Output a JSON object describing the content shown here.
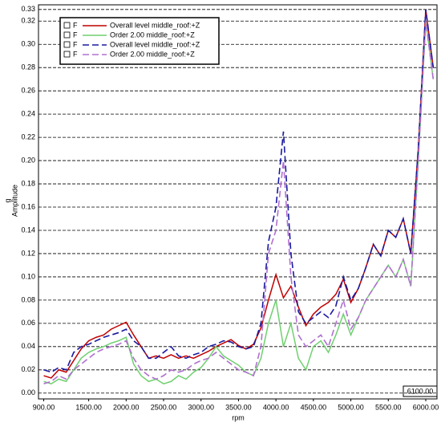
{
  "chart_data": {
    "type": "line",
    "x_label": "rpm",
    "y_label_unit": "g",
    "y_label": "Amplitude",
    "cursor_label": "6100.00",
    "x": [
      900,
      1000,
      1100,
      1200,
      1300,
      1400,
      1500,
      1600,
      1700,
      1800,
      1900,
      2000,
      2100,
      2200,
      2300,
      2400,
      2500,
      2600,
      2700,
      2800,
      2900,
      3000,
      3100,
      3200,
      3300,
      3400,
      3500,
      3600,
      3700,
      3800,
      3900,
      4000,
      4100,
      4200,
      4300,
      4400,
      4500,
      4600,
      4700,
      4800,
      4900,
      5000,
      5100,
      5200,
      5300,
      5400,
      5500,
      5600,
      5700,
      5800,
      5900,
      6000,
      6100
    ],
    "series": [
      {
        "name": "Overall level middle_roof:+Z",
        "flag": "F",
        "color": "#c00000",
        "dash": false,
        "values": [
          0.015,
          0.013,
          0.02,
          0.018,
          0.028,
          0.038,
          0.045,
          0.048,
          0.05,
          0.055,
          0.058,
          0.061,
          0.05,
          0.04,
          0.03,
          0.032,
          0.03,
          0.033,
          0.03,
          0.032,
          0.03,
          0.033,
          0.036,
          0.04,
          0.043,
          0.046,
          0.041,
          0.038,
          0.042,
          0.056,
          0.08,
          0.102,
          0.082,
          0.092,
          0.074,
          0.058,
          0.068,
          0.074,
          0.078,
          0.085,
          0.098,
          0.078,
          0.09,
          0.108,
          0.128,
          0.118,
          0.14,
          0.134,
          0.15,
          0.12,
          0.21,
          0.33,
          0.28
        ]
      },
      {
        "name": "Order 2.00 middle_roof:+Z",
        "flag": "F",
        "color": "#6fd06f",
        "dash": false,
        "values": [
          0.01,
          0.008,
          0.012,
          0.01,
          0.02,
          0.03,
          0.035,
          0.038,
          0.04,
          0.043,
          0.045,
          0.048,
          0.025,
          0.015,
          0.01,
          0.012,
          0.008,
          0.01,
          0.015,
          0.012,
          0.018,
          0.022,
          0.03,
          0.04,
          0.032,
          0.028,
          0.024,
          0.018,
          0.015,
          0.03,
          0.06,
          0.08,
          0.04,
          0.06,
          0.03,
          0.02,
          0.04,
          0.045,
          0.035,
          0.05,
          0.068,
          0.05,
          0.065,
          0.08,
          0.09,
          0.1,
          0.11,
          0.1,
          0.115,
          0.092,
          0.2,
          0.32,
          0.27
        ]
      },
      {
        "name": "Overall level middle_roof:+Z",
        "flag": "F",
        "color": "#1a1aa0",
        "dash": true,
        "values": [
          0.02,
          0.018,
          0.022,
          0.02,
          0.035,
          0.04,
          0.042,
          0.045,
          0.048,
          0.05,
          0.052,
          0.055,
          0.045,
          0.04,
          0.03,
          0.03,
          0.035,
          0.04,
          0.032,
          0.03,
          0.033,
          0.035,
          0.04,
          0.042,
          0.045,
          0.044,
          0.04,
          0.038,
          0.04,
          0.06,
          0.13,
          0.16,
          0.225,
          0.12,
          0.07,
          0.06,
          0.065,
          0.07,
          0.065,
          0.075,
          0.1,
          0.08,
          0.09,
          0.108,
          0.128,
          0.118,
          0.14,
          0.134,
          0.15,
          0.12,
          0.21,
          0.33,
          0.28
        ]
      },
      {
        "name": "Order 2.00 middle_roof:+Z",
        "flag": "F",
        "color": "#b070d0",
        "dash": true,
        "values": [
          0.008,
          0.01,
          0.015,
          0.012,
          0.02,
          0.025,
          0.03,
          0.035,
          0.038,
          0.04,
          0.042,
          0.045,
          0.03,
          0.02,
          0.015,
          0.012,
          0.015,
          0.02,
          0.018,
          0.02,
          0.025,
          0.028,
          0.03,
          0.035,
          0.03,
          0.025,
          0.02,
          0.018,
          0.015,
          0.04,
          0.12,
          0.14,
          0.2,
          0.1,
          0.05,
          0.04,
          0.045,
          0.05,
          0.04,
          0.06,
          0.08,
          0.055,
          0.065,
          0.08,
          0.09,
          0.1,
          0.11,
          0.1,
          0.115,
          0.092,
          0.2,
          0.32,
          0.27
        ]
      }
    ],
    "xlim": [
      830,
      6150
    ],
    "ylim": [
      -0.005,
      0.334
    ],
    "xticks": [
      {
        "value": 900,
        "label": "900.00"
      },
      {
        "value": 1500,
        "label": "1500.00"
      },
      {
        "value": 2000,
        "label": "2000.00"
      },
      {
        "value": 2500,
        "label": "2500.00"
      },
      {
        "value": 3000,
        "label": "3000.00"
      },
      {
        "value": 3500,
        "label": "3500.00"
      },
      {
        "value": 4000,
        "label": "4000.00"
      },
      {
        "value": 4500,
        "label": "4500.00"
      },
      {
        "value": 5000,
        "label": "5000.00"
      },
      {
        "value": 5500,
        "label": "5500.00"
      },
      {
        "value": 6000,
        "label": "6000.00"
      }
    ],
    "yticks": [
      {
        "value": 0,
        "label": "0.00"
      },
      {
        "value": 0.02,
        "label": "0.02"
      },
      {
        "value": 0.04,
        "label": "0.04"
      },
      {
        "value": 0.06,
        "label": "0.06"
      },
      {
        "value": 0.08,
        "label": "0.08"
      },
      {
        "value": 0.1,
        "label": "0.10"
      },
      {
        "value": 0.12,
        "label": "0.12"
      },
      {
        "value": 0.14,
        "label": "0.14"
      },
      {
        "value": 0.16,
        "label": "0.16"
      },
      {
        "value": 0.18,
        "label": "0.18"
      },
      {
        "value": 0.2,
        "label": "0.20"
      },
      {
        "value": 0.22,
        "label": "0.22"
      },
      {
        "value": 0.24,
        "label": "0.24"
      },
      {
        "value": 0.26,
        "label": "0.26"
      },
      {
        "value": 0.28,
        "label": "0.28"
      },
      {
        "value": 0.3,
        "label": "0.30"
      },
      {
        "value": 0.32,
        "label": "0.32"
      },
      {
        "value": 0.33,
        "label": "0.33"
      }
    ],
    "grid": true
  }
}
